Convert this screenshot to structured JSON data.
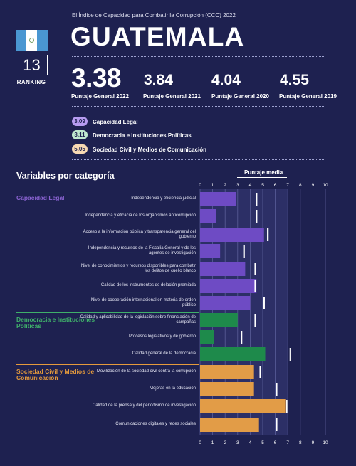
{
  "header": {
    "subtitle": "El Índice de Capacidad para Combatir la Corrupción (CCC) 2022",
    "country": "GUATEMALA",
    "ranking": "13",
    "ranking_label": "RANKING"
  },
  "scores": [
    {
      "value": "3.38",
      "label": "Puntaje General 2022"
    },
    {
      "value": "3.84",
      "label": "Puntaje General 2021"
    },
    {
      "value": "4.04",
      "label": "Puntaje General 2020"
    },
    {
      "value": "4.55",
      "label": "Puntaje General 2019"
    }
  ],
  "subscores": [
    {
      "value": "3.09",
      "label": "Capacidad Legal",
      "color": "#b79cf0"
    },
    {
      "value": "3.11",
      "label": "Democracia e Instituciones Políticas",
      "color": "#bfe8cf"
    },
    {
      "value": "5.05",
      "label": "Sociedad Civil y Medios de Comunicación",
      "color": "#f7d9b3"
    }
  ],
  "chart_data": {
    "type": "bar",
    "title": "Variables por categoría",
    "avg_label": "Puntaje media",
    "xlim": [
      0,
      10
    ],
    "xticks": [
      "0",
      "1",
      "2",
      "3",
      "4",
      "5",
      "6",
      "7",
      "8",
      "9",
      "10"
    ],
    "categories": [
      {
        "name": "Capacidad Legal",
        "color": "#8a63d2",
        "bar_color": "#6e4bc4"
      },
      {
        "name": "Democracia e Instituciones Políticas",
        "color": "#3fb06a",
        "bar_color": "#1e8a4b"
      },
      {
        "name": "Sociedad Civil y Medios de Comunicación",
        "color": "#e59a3c",
        "bar_color": "#e29c47"
      }
    ],
    "variables": [
      {
        "label": "Independencia y eficiencia judicial",
        "value": 2.9,
        "avg": 4.5,
        "cat": 0
      },
      {
        "label": "Independencia y eficacia de los organismos anticorrupción",
        "value": 1.3,
        "avg": 4.5,
        "cat": 0
      },
      {
        "label": "Acceso a la información pública y transparencia general del gobierno",
        "value": 5.1,
        "avg": 5.4,
        "cat": 0
      },
      {
        "label": "Independencia y recursos de la Fiscalía General y de los agentes de investigación",
        "value": 1.6,
        "avg": 3.5,
        "cat": 0
      },
      {
        "label": "Nivel de conocimientos y recursos disponibles para combatir los delitos de cuello blanco",
        "value": 3.6,
        "avg": 4.4,
        "cat": 0
      },
      {
        "label": "Calidad de los instrumentos de delación premiada",
        "value": 4.5,
        "avg": 4.4,
        "cat": 0
      },
      {
        "label": "Nivel de cooperación internacional en materia de orden público",
        "value": 4.0,
        "avg": 5.1,
        "cat": 0
      },
      {
        "label": "Calidad y aplicabilidad de la legislación sobre financiación de campañas",
        "value": 3.0,
        "avg": 4.4,
        "cat": 1
      },
      {
        "label": "Procesos legislativos y de gobierno",
        "value": 1.1,
        "avg": 3.3,
        "cat": 1
      },
      {
        "label": "Calidad general de la democracia",
        "value": 5.2,
        "avg": 7.2,
        "cat": 1
      },
      {
        "label": "Movilización de la sociedad civil contra la corrupción",
        "value": 4.3,
        "avg": 4.8,
        "cat": 2
      },
      {
        "label": "Mejoras en la educación",
        "value": 4.3,
        "avg": 6.1,
        "cat": 2
      },
      {
        "label": "Calidad de la prensa y del periodismo de investigación",
        "value": 6.8,
        "avg": 6.9,
        "cat": 2
      },
      {
        "label": "Comunicaciones digitales y redes sociales",
        "value": 4.7,
        "avg": 6.1,
        "cat": 2
      }
    ]
  }
}
